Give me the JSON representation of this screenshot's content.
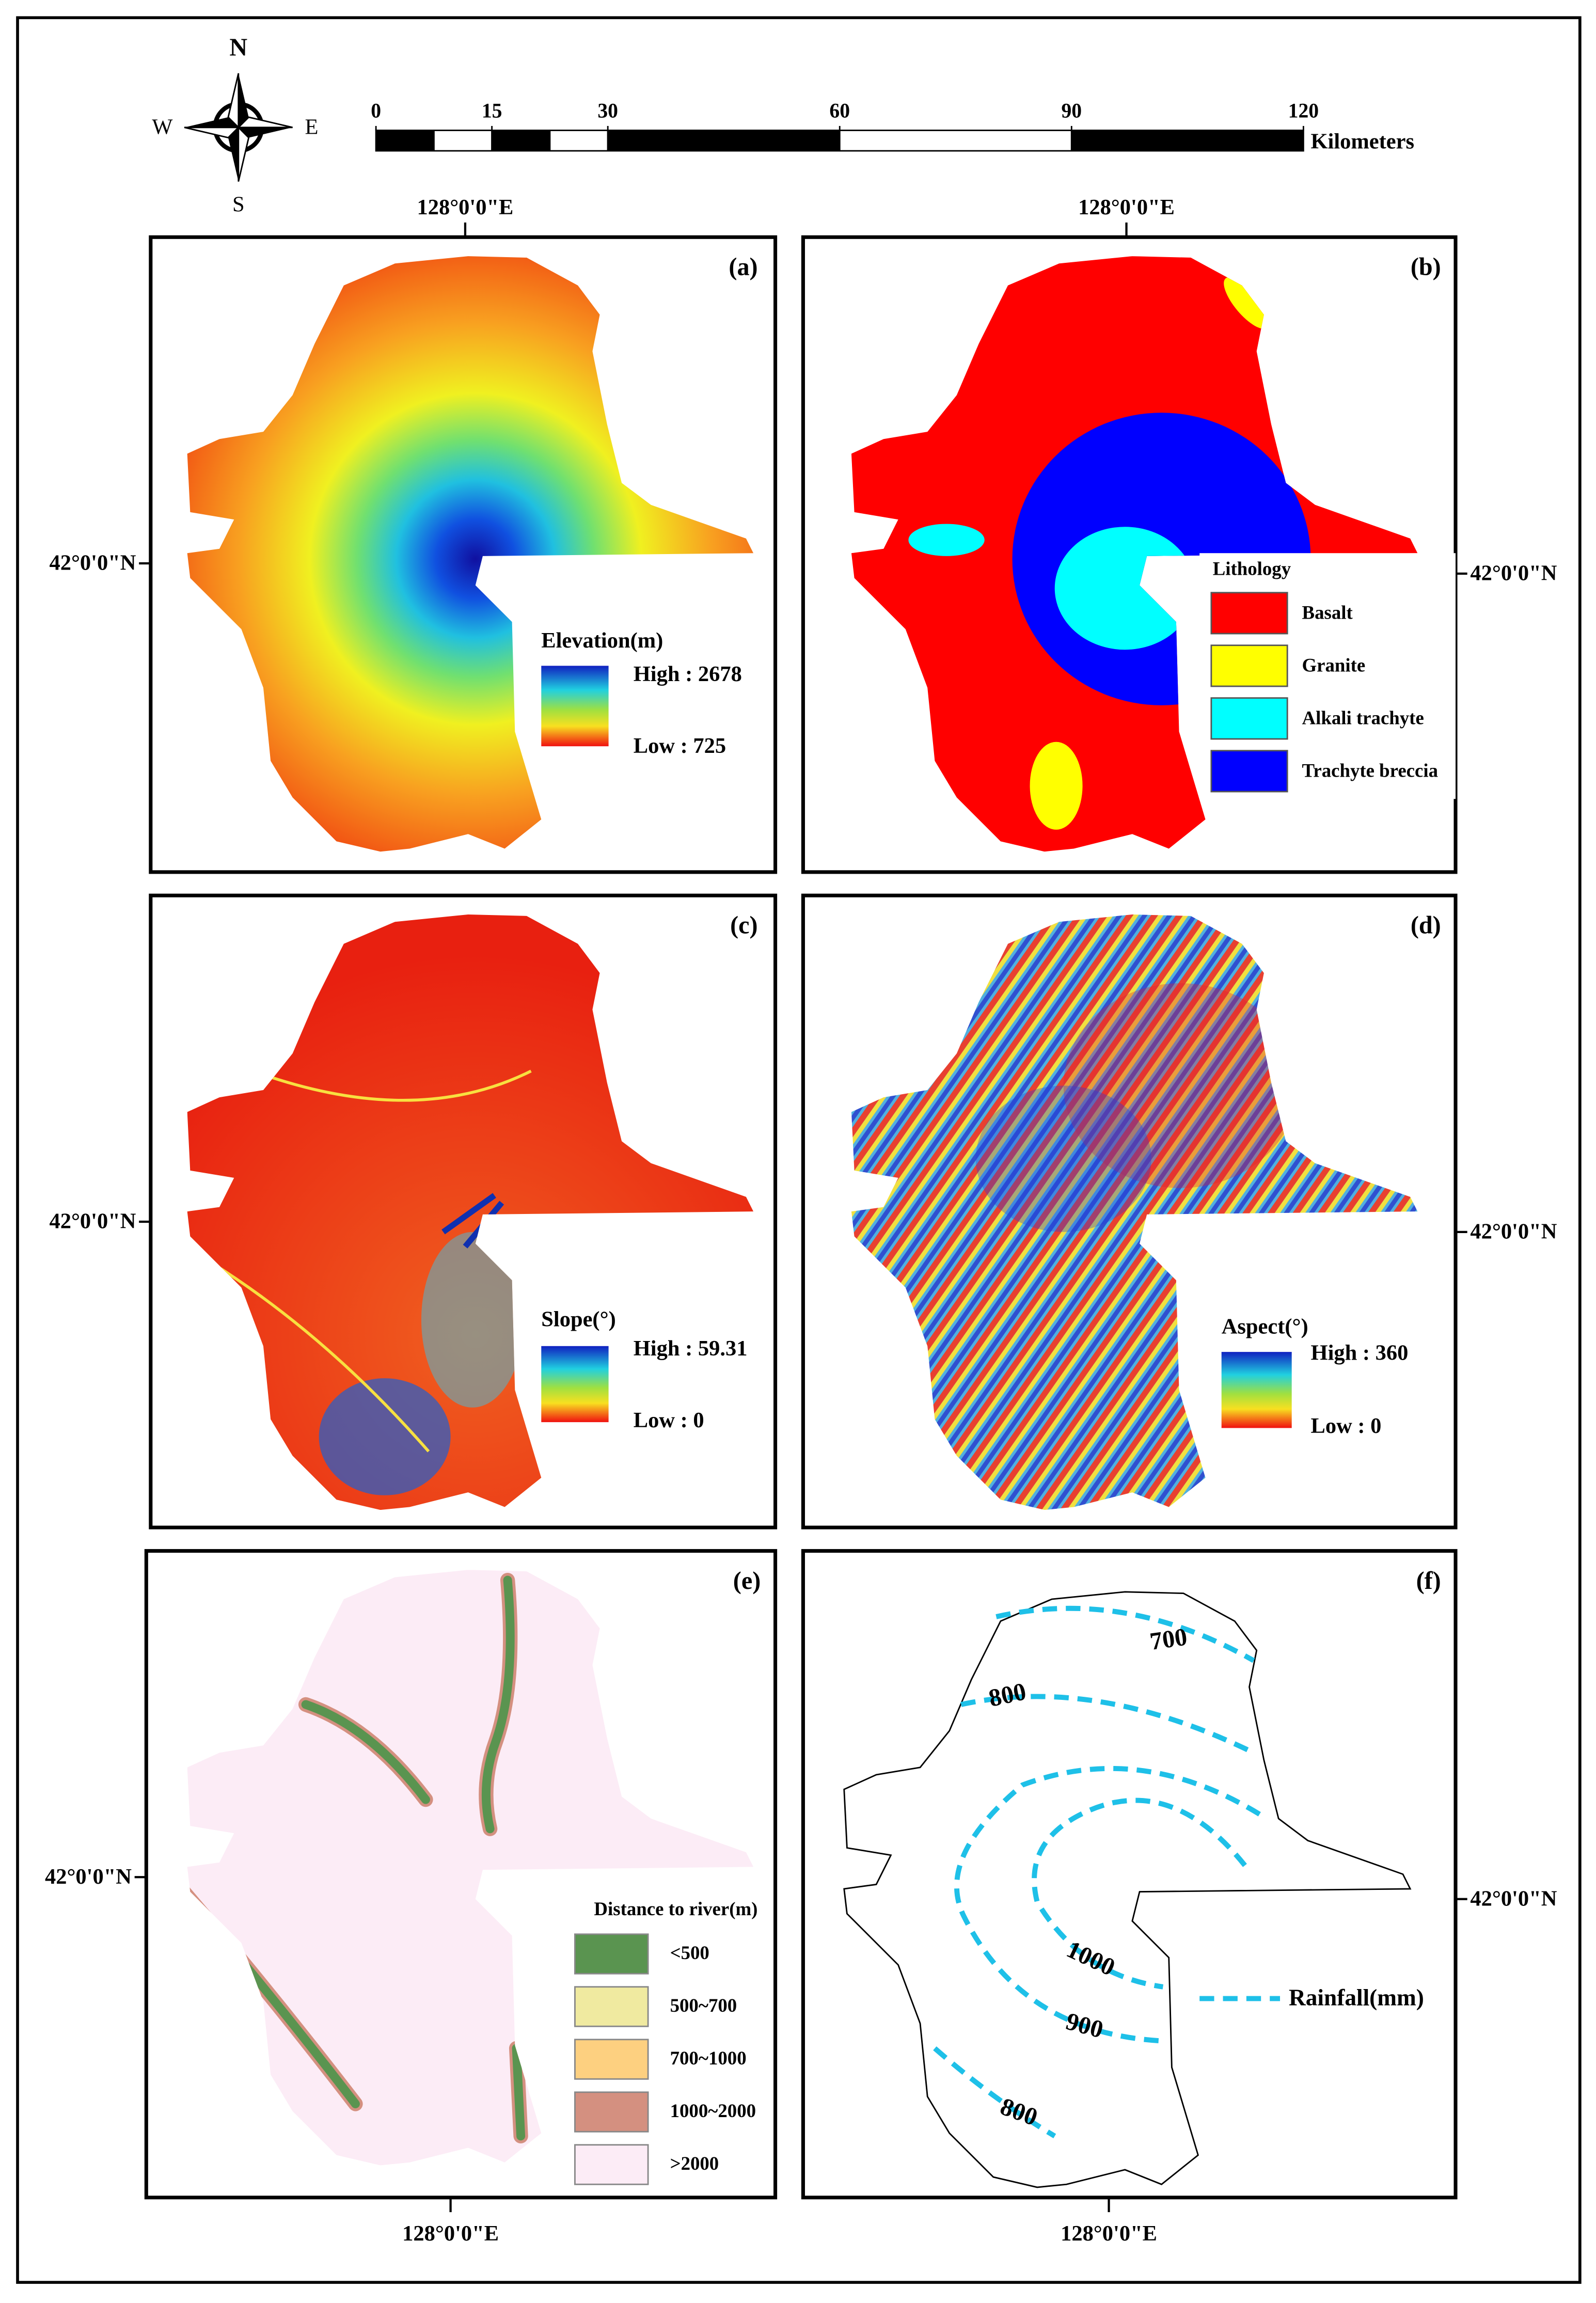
{
  "compass": {
    "north": "N",
    "west": "W",
    "east": "E",
    "south": "S"
  },
  "scale_bar": {
    "ticks": [
      0,
      15,
      30,
      60,
      90,
      120
    ],
    "unit": "Kilometers"
  },
  "coordinate_labels": {
    "top": [
      "128°0'0\"E",
      "128°0'0\"E"
    ],
    "bottom": [
      "128°0'0\"E",
      "128°0'0\"E"
    ],
    "left": [
      "42°0'0\"N",
      "42°0'0\"N",
      "42°0'0\"N"
    ],
    "right": [
      "42°0'0\"N",
      "42°0'0\"N",
      "42°0'0\"N"
    ]
  },
  "panels": {
    "a": {
      "label": "(a)",
      "legend_title": "Elevation(m)",
      "high": "High : 2678",
      "low": "Low : 725"
    },
    "b": {
      "label": "(b)",
      "legend_title": "Lithology",
      "classes": [
        {
          "name": "Basalt",
          "color": "#ff0000"
        },
        {
          "name": "Granite",
          "color": "#ffff00"
        },
        {
          "name": "Alkali trachyte",
          "color": "#00ffff"
        },
        {
          "name": "Trachyte breccia",
          "color": "#0000ff"
        }
      ]
    },
    "c": {
      "label": "(c)",
      "legend_title": "Slope(°)",
      "high": "High : 59.31",
      "low": "Low : 0"
    },
    "d": {
      "label": "(d)",
      "legend_title": "Aspect(°)",
      "high": "High : 360",
      "low": "Low : 0"
    },
    "e": {
      "label": "(e)",
      "legend_title": "Distance to river(m)",
      "classes": [
        {
          "name": "<500",
          "color": "#5a9450"
        },
        {
          "name": "500~700",
          "color": "#f0eaa0"
        },
        {
          "name": "700~1000",
          "color": "#fdd080"
        },
        {
          "name": "1000~2000",
          "color": "#d49080"
        },
        {
          "name": ">2000",
          "color": "#fcecf6"
        }
      ]
    },
    "f": {
      "label": "(f)",
      "legend_title": "Rainfall(mm)",
      "contour_labels": [
        "700",
        "800",
        "1000",
        "900",
        "800"
      ]
    }
  }
}
